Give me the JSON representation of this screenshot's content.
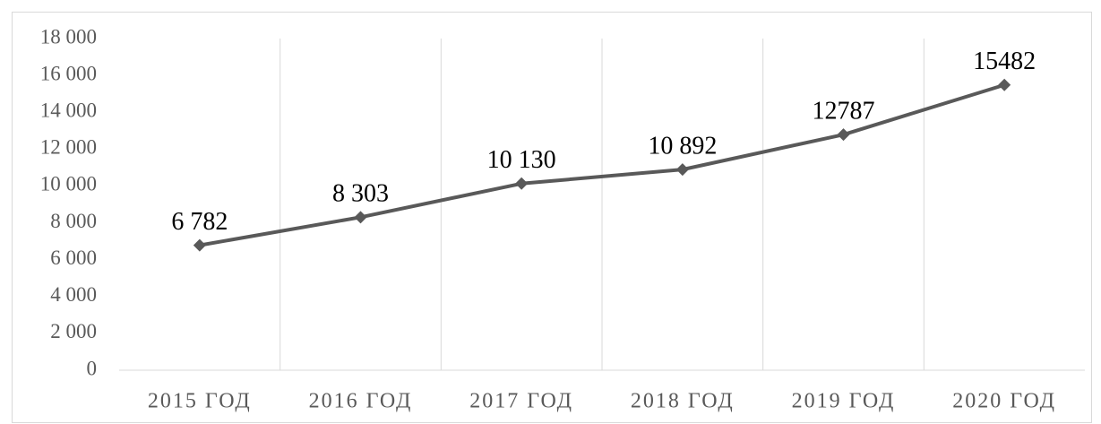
{
  "chart_data": {
    "type": "line",
    "categories": [
      "2015 ГОД",
      "2016 ГОД",
      "2017 ГОД",
      "2018 ГОД",
      "2019 ГОД",
      "2020 ГОД"
    ],
    "series": [
      {
        "color": "#595959",
        "values": [
          6782,
          8303,
          10130,
          10892,
          12787,
          15482
        ],
        "value_labels": [
          "6 782",
          "8 303",
          "10 130",
          "10 892",
          "12787",
          "15482"
        ]
      }
    ],
    "ylim": [
      0,
      18000
    ],
    "yticks": [
      0,
      {
        "value": 2000,
        "label": "2 000"
      },
      {
        "value": 4000,
        "label": "4 000"
      },
      {
        "value": 6000,
        "label": "6 000"
      },
      {
        "value": 8000,
        "label": "8 000"
      },
      {
        "value": 10000,
        "label": "10 000"
      },
      {
        "value": 12000,
        "label": "12 000"
      },
      {
        "value": 14000,
        "label": "14 000"
      },
      {
        "value": 16000,
        "label": "16 000"
      },
      {
        "value": 18000,
        "label": "18 000"
      }
    ],
    "grid": "x"
  }
}
